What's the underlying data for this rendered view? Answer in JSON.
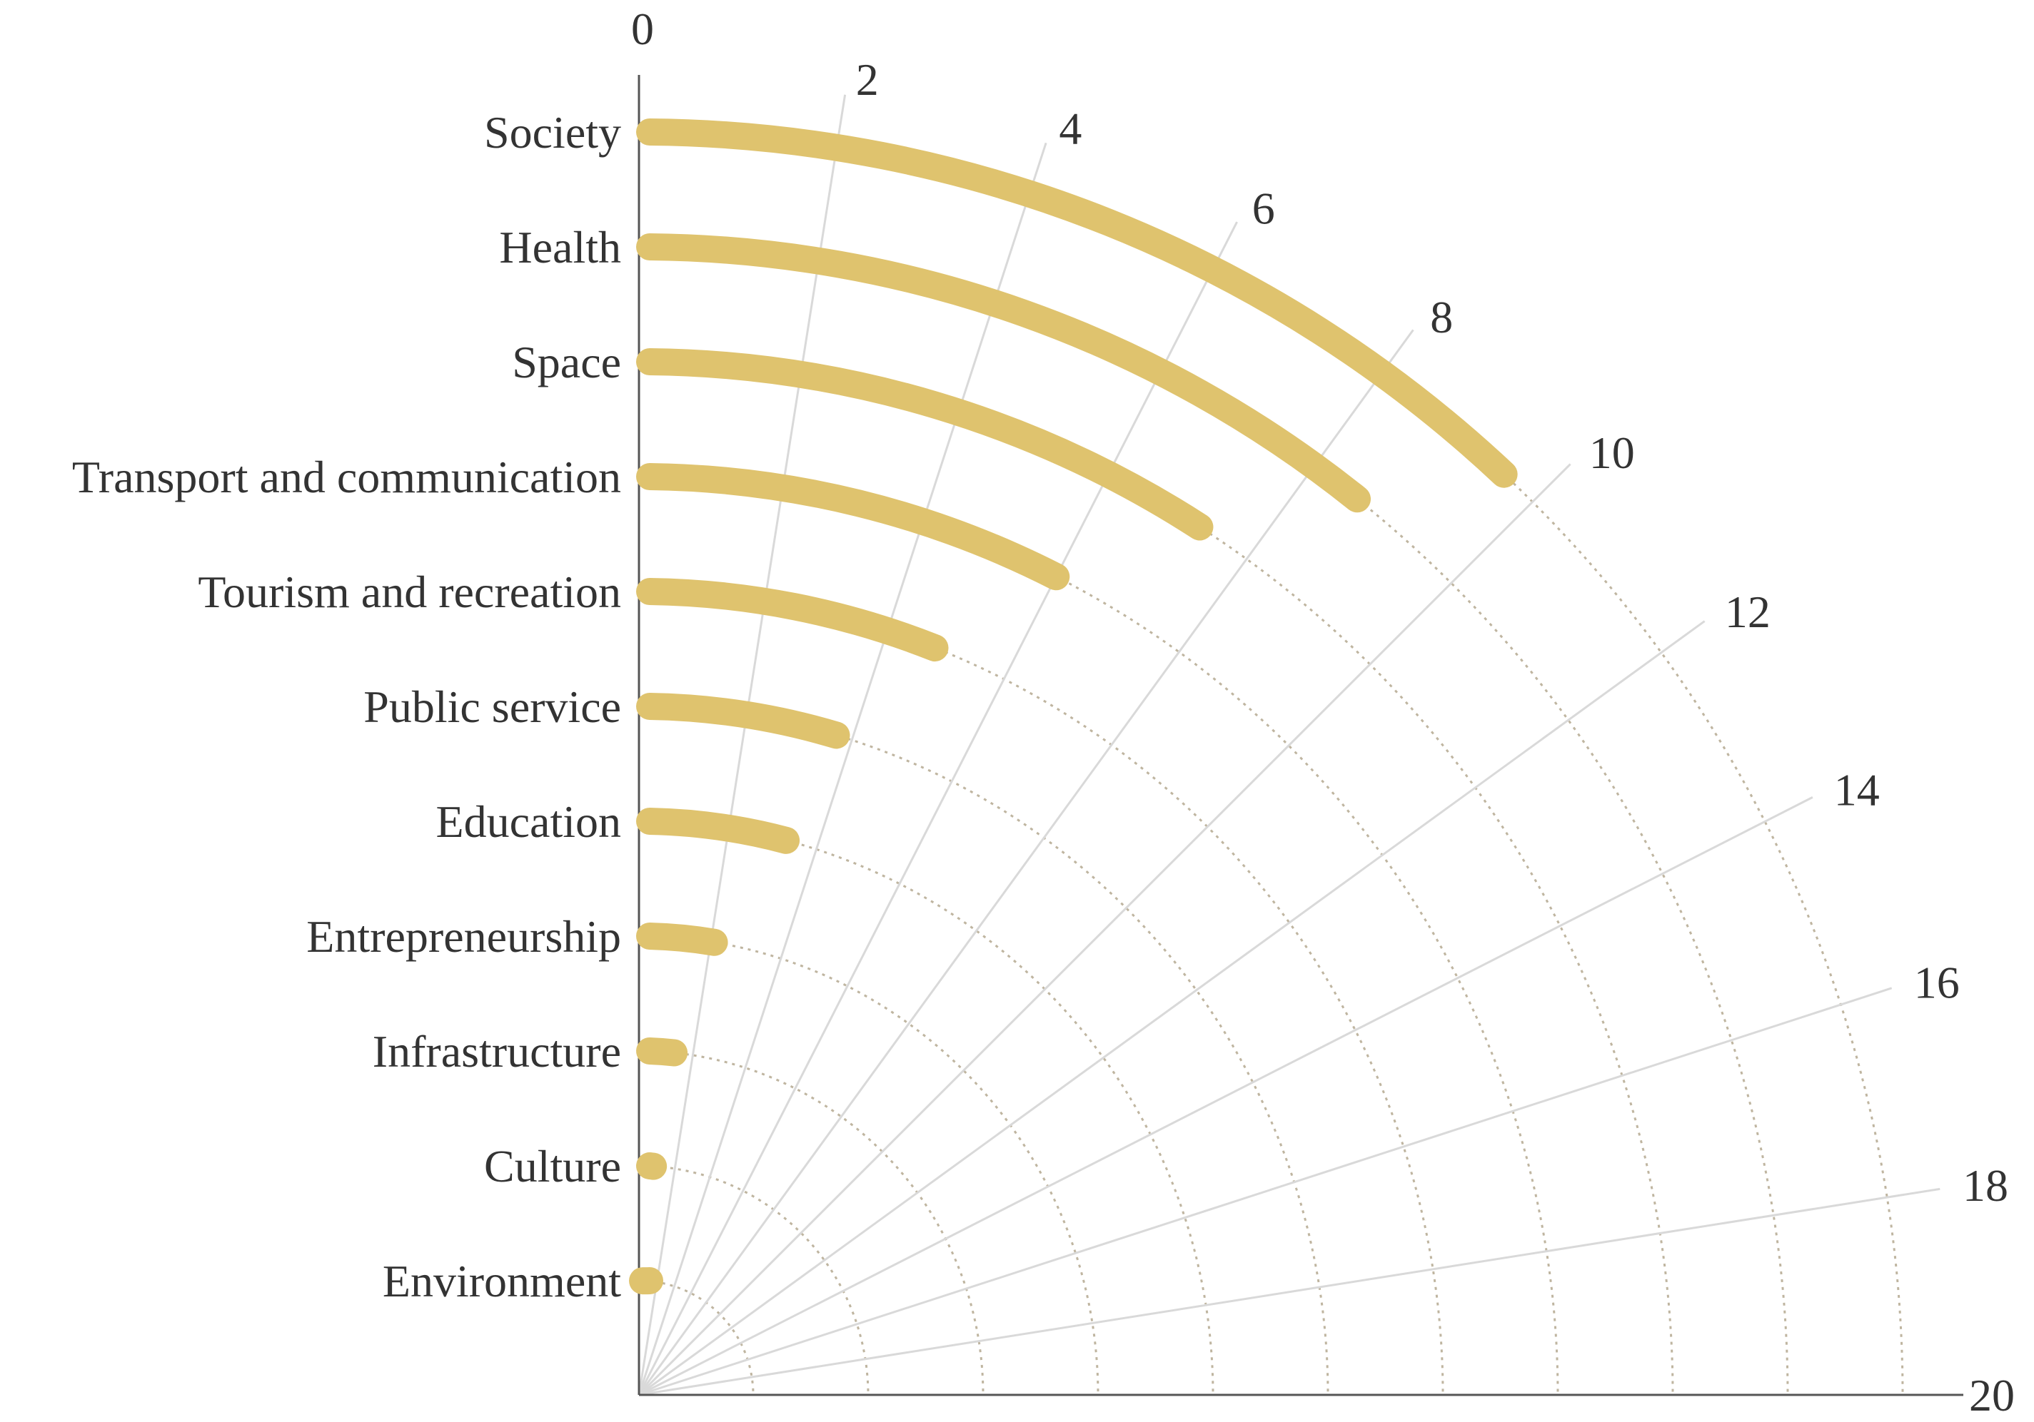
{
  "chart_data": {
    "type": "radial-bar",
    "title": "",
    "categories": [
      "Society",
      "Health",
      "Space",
      "Transport and communication",
      "Tourism and recreation",
      "Public service",
      "Education",
      "Entrepreneurship",
      "Infrastructure",
      "Culture",
      "Environment"
    ],
    "values": [
      9.6,
      8.6,
      7.3,
      6.0,
      4.8,
      3.7,
      3.3,
      2.1,
      1.3,
      0.8,
      0.4
    ],
    "ticks": [
      "0",
      "2",
      "4",
      "6",
      "8",
      "10",
      "12",
      "14",
      "16",
      "18",
      "20"
    ],
    "range": [
      0,
      20
    ],
    "colors": {
      "bar": "#DFC36E",
      "axis": "#555555",
      "spoke": "#D9D9D9",
      "ring": "#BFB5A0"
    }
  }
}
